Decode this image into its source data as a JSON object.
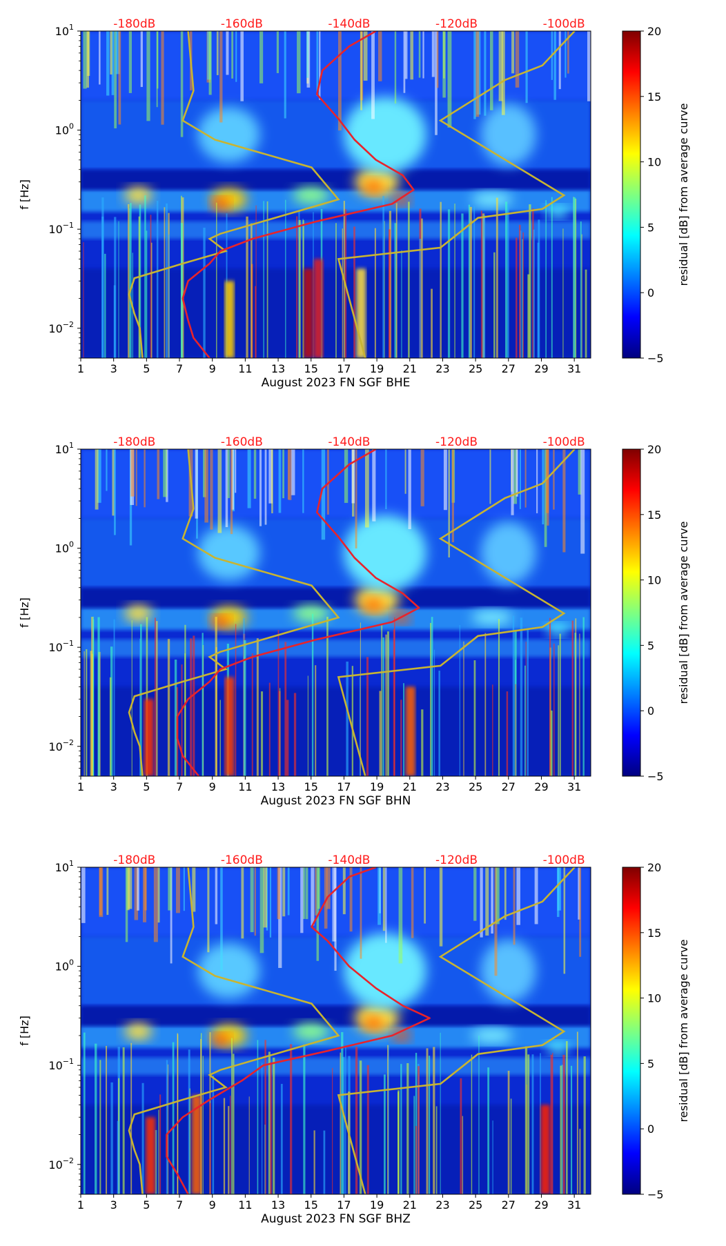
{
  "chart_data": [
    {
      "type": "heatmap",
      "xlabel": "August 2023 FN SGF  BHE",
      "ylabel": "f [Hz]",
      "x_ticks": [
        "1",
        "3",
        "5",
        "7",
        "9",
        "11",
        "13",
        "15",
        "17",
        "19",
        "21",
        "23",
        "25",
        "27",
        "29",
        "31"
      ],
      "x_range": [
        1,
        32
      ],
      "y_scale": "log",
      "y_range": [
        0.005,
        10
      ],
      "y_ticks": [
        {
          "base": "10",
          "exp": "1"
        },
        {
          "base": "10",
          "exp": "0"
        },
        {
          "base": "10",
          "exp": "−1"
        },
        {
          "base": "10",
          "exp": "−2"
        }
      ],
      "top_labels": [
        "-180dB",
        "-160dB",
        "-140dB",
        "-120dB",
        "-100dB"
      ],
      "colorbar": {
        "label": "residual [dB] from average curve",
        "ticks": [
          "20",
          "15",
          "10",
          "5",
          "0",
          "−5"
        ],
        "range": [
          -5,
          20
        ]
      },
      "model_curve_color": "#c8b432",
      "average_curve_color": "#e8232b",
      "average_curve": [
        [
          -166,
          0.005
        ],
        [
          -169,
          0.008
        ],
        [
          -170,
          0.012
        ],
        [
          -171,
          0.02
        ],
        [
          -170,
          0.03
        ],
        [
          -166,
          0.045
        ],
        [
          -164,
          0.06
        ],
        [
          -158,
          0.08
        ],
        [
          -146,
          0.12
        ],
        [
          -132,
          0.18
        ],
        [
          -128,
          0.25
        ],
        [
          -130,
          0.35
        ],
        [
          -135,
          0.5
        ],
        [
          -139,
          0.8
        ],
        [
          -142,
          1.3
        ],
        [
          -146,
          2.3
        ],
        [
          -145,
          4
        ],
        [
          -140,
          7
        ],
        [
          -135,
          10
        ]
      ]
    },
    {
      "type": "heatmap",
      "xlabel": "August 2023 FN SGF  BHN",
      "ylabel": "f [Hz]",
      "x_ticks": [
        "1",
        "3",
        "5",
        "7",
        "9",
        "11",
        "13",
        "15",
        "17",
        "19",
        "21",
        "23",
        "25",
        "27",
        "29",
        "31"
      ],
      "x_range": [
        1,
        32
      ],
      "y_scale": "log",
      "y_range": [
        0.005,
        10
      ],
      "y_ticks": [
        {
          "base": "10",
          "exp": "1"
        },
        {
          "base": "10",
          "exp": "0"
        },
        {
          "base": "10",
          "exp": "−1"
        },
        {
          "base": "10",
          "exp": "−2"
        }
      ],
      "top_labels": [
        "-180dB",
        "-160dB",
        "-140dB",
        "-120dB",
        "-100dB"
      ],
      "colorbar": {
        "label": "residual [dB] from average curve",
        "ticks": [
          "20",
          "15",
          "10",
          "5",
          "0",
          "−5"
        ],
        "range": [
          -5,
          20
        ]
      },
      "model_curve_color": "#c8b432",
      "average_curve_color": "#e8232b",
      "average_curve": [
        [
          -168,
          0.005
        ],
        [
          -171,
          0.008
        ],
        [
          -172,
          0.012
        ],
        [
          -172,
          0.02
        ],
        [
          -170,
          0.03
        ],
        [
          -166,
          0.045
        ],
        [
          -164,
          0.06
        ],
        [
          -158,
          0.08
        ],
        [
          -146,
          0.12
        ],
        [
          -132,
          0.18
        ],
        [
          -127,
          0.25
        ],
        [
          -130,
          0.35
        ],
        [
          -135,
          0.5
        ],
        [
          -139,
          0.8
        ],
        [
          -142,
          1.3
        ],
        [
          -146,
          2.3
        ],
        [
          -145,
          4
        ],
        [
          -140,
          7
        ],
        [
          -135,
          10
        ]
      ]
    },
    {
      "type": "heatmap",
      "xlabel": "August 2023 FN SGF  BHZ",
      "ylabel": "f [Hz]",
      "x_ticks": [
        "1",
        "3",
        "5",
        "7",
        "9",
        "11",
        "13",
        "15",
        "17",
        "19",
        "21",
        "23",
        "25",
        "27",
        "29",
        "31"
      ],
      "x_range": [
        1,
        32
      ],
      "y_scale": "log",
      "y_range": [
        0.005,
        10
      ],
      "y_ticks": [
        {
          "base": "10",
          "exp": "1"
        },
        {
          "base": "10",
          "exp": "0"
        },
        {
          "base": "10",
          "exp": "−1"
        },
        {
          "base": "10",
          "exp": "−2"
        }
      ],
      "top_labels": [
        "-180dB",
        "-160dB",
        "-140dB",
        "-120dB",
        "-100dB"
      ],
      "colorbar": {
        "label": "residual [dB] from average curve",
        "ticks": [
          "20",
          "15",
          "10",
          "5",
          "0",
          "−5"
        ],
        "range": [
          -5,
          20
        ]
      },
      "model_curve_color": "#c8b432",
      "average_curve_color": "#e8232b",
      "average_curve": [
        [
          -170,
          0.005
        ],
        [
          -172,
          0.008
        ],
        [
          -174,
          0.012
        ],
        [
          -174,
          0.02
        ],
        [
          -171,
          0.03
        ],
        [
          -166,
          0.045
        ],
        [
          -160,
          0.07
        ],
        [
          -156,
          0.1
        ],
        [
          -144,
          0.14
        ],
        [
          -132,
          0.2
        ],
        [
          -125,
          0.3
        ],
        [
          -130,
          0.4
        ],
        [
          -135,
          0.6
        ],
        [
          -140,
          1.0
        ],
        [
          -144,
          1.8
        ],
        [
          -147,
          2.5
        ],
        [
          -144,
          5
        ],
        [
          -140,
          8
        ],
        [
          -135,
          10
        ]
      ]
    }
  ],
  "model_curves": {
    "low": [
      [
        -178.5,
        0.005
      ],
      [
        -179,
        0.01
      ],
      [
        -180,
        0.014
      ],
      [
        -181,
        0.022
      ],
      [
        -180,
        0.032
      ],
      [
        -171,
        0.045
      ],
      [
        -163,
        0.06
      ],
      [
        -166,
        0.08
      ],
      [
        -164,
        0.09
      ],
      [
        -142,
        0.2
      ],
      [
        -147,
        0.42
      ],
      [
        -165,
        0.8
      ],
      [
        -171,
        1.25
      ],
      [
        -169,
        2.5
      ],
      [
        -170,
        10
      ]
    ],
    "high": [
      [
        -137,
        0.005
      ],
      [
        -142,
        0.05
      ],
      [
        -123,
        0.065
      ],
      [
        -116,
        0.13
      ],
      [
        -104,
        0.16
      ],
      [
        -100,
        0.22
      ],
      [
        -123,
        1.25
      ],
      [
        -111,
        3.2
      ],
      [
        -104,
        4.5
      ],
      [
        -98,
        10
      ]
    ]
  }
}
